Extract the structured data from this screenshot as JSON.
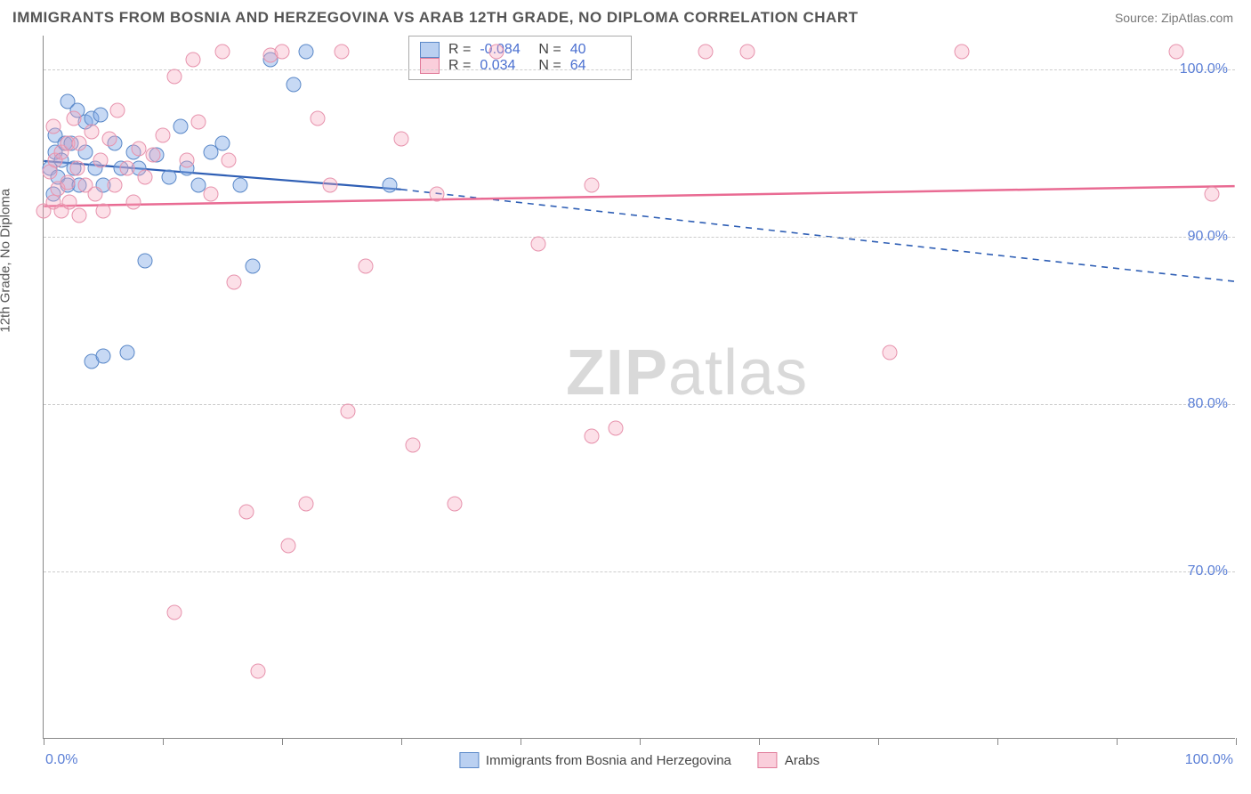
{
  "title": "IMMIGRANTS FROM BOSNIA AND HERZEGOVINA VS ARAB 12TH GRADE, NO DIPLOMA CORRELATION CHART",
  "source_prefix": "Source: ",
  "source_name": "ZipAtlas.com",
  "ylabel": "12th Grade, No Diploma",
  "watermark_bold": "ZIP",
  "watermark_rest": "atlas",
  "chart": {
    "type": "scatter",
    "xlim": [
      0,
      100
    ],
    "ylim": [
      60,
      102
    ],
    "y_ticks": [
      70,
      80,
      90,
      100
    ],
    "y_tick_labels": [
      "70.0%",
      "80.0%",
      "90.0%",
      "100.0%"
    ],
    "x_ticks": [
      0,
      10,
      20,
      30,
      40,
      50,
      60,
      70,
      80,
      90,
      100
    ],
    "x_left_label": "0.0%",
    "x_right_label": "100.0%",
    "background_color": "#ffffff",
    "grid_color": "#cccccc",
    "axis_color": "#888888",
    "marker_radius": 8.5,
    "series": [
      {
        "id": "bosnia",
        "label": "Immigrants from Bosnia and Herzegovina",
        "fill": "rgba(130,170,230,0.45)",
        "stroke": "#5a88c8",
        "R": "-0.084",
        "N": "40",
        "regression": {
          "x1": 0,
          "y1": 94.5,
          "x2": 30,
          "y2": 92.8,
          "solid_until_x": 30,
          "x3": 100,
          "y3": 87.3,
          "color": "#2f5fb5",
          "width": 2.2
        },
        "points": [
          [
            0.5,
            94
          ],
          [
            0.8,
            92.5
          ],
          [
            1,
            95
          ],
          [
            1,
            96
          ],
          [
            1.2,
            93.5
          ],
          [
            1.5,
            94.5
          ],
          [
            1.8,
            95.5
          ],
          [
            2,
            93
          ],
          [
            2,
            98
          ],
          [
            2.3,
            95.5
          ],
          [
            2.5,
            94
          ],
          [
            2.8,
            97.5
          ],
          [
            3,
            93
          ],
          [
            3.5,
            96.8
          ],
          [
            3.5,
            95
          ],
          [
            4,
            97
          ],
          [
            4,
            82.5
          ],
          [
            4.3,
            94
          ],
          [
            4.8,
            97.2
          ],
          [
            5,
            93
          ],
          [
            5,
            82.8
          ],
          [
            6,
            95.5
          ],
          [
            6.5,
            94
          ],
          [
            7,
            83
          ],
          [
            7.5,
            95
          ],
          [
            8,
            94
          ],
          [
            8.5,
            88.5
          ],
          [
            9.5,
            94.8
          ],
          [
            10.5,
            93.5
          ],
          [
            11.5,
            96.5
          ],
          [
            12,
            94
          ],
          [
            13,
            93
          ],
          [
            14,
            95
          ],
          [
            15,
            95.5
          ],
          [
            16.5,
            93
          ],
          [
            17.5,
            88.2
          ],
          [
            19,
            100.5
          ],
          [
            21,
            99
          ],
          [
            22,
            101
          ],
          [
            29,
            93
          ]
        ]
      },
      {
        "id": "arabs",
        "label": "Arabs",
        "fill": "rgba(245,165,190,0.35)",
        "stroke": "#e793ad",
        "R": "0.034",
        "N": "64",
        "regression": {
          "x1": 0,
          "y1": 91.8,
          "x2": 100,
          "y2": 93.0,
          "color": "#e96b93",
          "width": 2.5
        },
        "points": [
          [
            0,
            91.5
          ],
          [
            0.5,
            93.8
          ],
          [
            0.8,
            92
          ],
          [
            0.8,
            96.5
          ],
          [
            1,
            94.5
          ],
          [
            1.2,
            92.8
          ],
          [
            1.5,
            91.5
          ],
          [
            1.5,
            95
          ],
          [
            2,
            93.2
          ],
          [
            2,
            95.5
          ],
          [
            2.2,
            92
          ],
          [
            2.5,
            97
          ],
          [
            2.8,
            94
          ],
          [
            3,
            95.5
          ],
          [
            3,
            91.2
          ],
          [
            3.5,
            93
          ],
          [
            4,
            96.2
          ],
          [
            4.3,
            92.5
          ],
          [
            4.8,
            94.5
          ],
          [
            5,
            91.5
          ],
          [
            5.5,
            95.8
          ],
          [
            6,
            93
          ],
          [
            6.2,
            97.5
          ],
          [
            7,
            94
          ],
          [
            7.5,
            92
          ],
          [
            8,
            95.2
          ],
          [
            8.5,
            93.5
          ],
          [
            9.2,
            94.8
          ],
          [
            10,
            96
          ],
          [
            11,
            99.5
          ],
          [
            11,
            67.5
          ],
          [
            12,
            94.5
          ],
          [
            12.5,
            100.5
          ],
          [
            13,
            96.8
          ],
          [
            14,
            92.5
          ],
          [
            15,
            101
          ],
          [
            15.5,
            94.5
          ],
          [
            16,
            87.2
          ],
          [
            17,
            73.5
          ],
          [
            18,
            64
          ],
          [
            19,
            100.8
          ],
          [
            20,
            101
          ],
          [
            20.5,
            71.5
          ],
          [
            22,
            74
          ],
          [
            23,
            97
          ],
          [
            24,
            93
          ],
          [
            25,
            101
          ],
          [
            25.5,
            79.5
          ],
          [
            27,
            88.2
          ],
          [
            30,
            95.8
          ],
          [
            31,
            77.5
          ],
          [
            33,
            92.5
          ],
          [
            34.5,
            74
          ],
          [
            38,
            101
          ],
          [
            41.5,
            89.5
          ],
          [
            46,
            78
          ],
          [
            46,
            93
          ],
          [
            48,
            78.5
          ],
          [
            55.5,
            101
          ],
          [
            59,
            101
          ],
          [
            71,
            83
          ],
          [
            77,
            101
          ],
          [
            95,
            101
          ],
          [
            98,
            92.5
          ]
        ]
      }
    ]
  },
  "legend_top": {
    "r_label": "R =",
    "n_label": "N ="
  },
  "colors": {
    "title_text": "#555555",
    "tick_text": "#5b7fd6",
    "blue_line": "#2f5fb5",
    "pink_line": "#e96b93"
  }
}
